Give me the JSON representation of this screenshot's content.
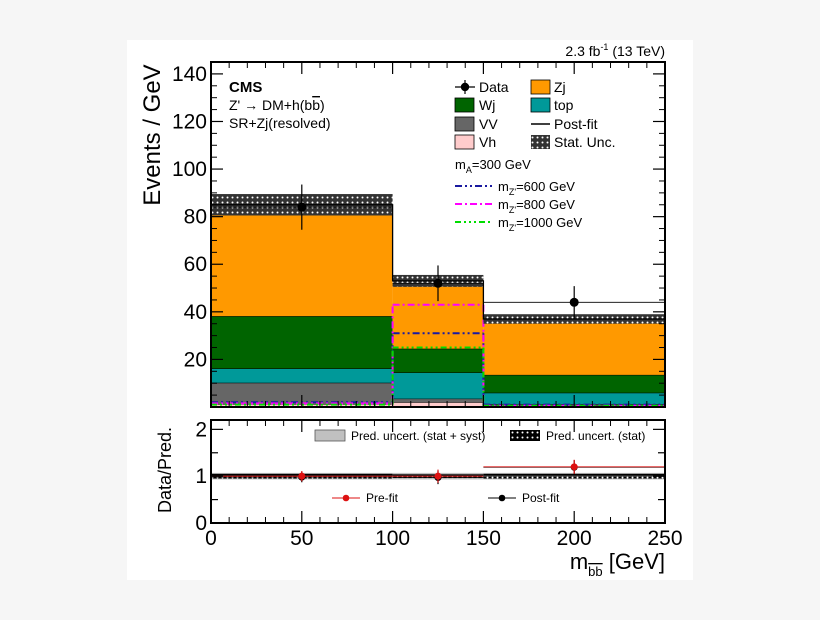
{
  "chart_data": {
    "type": "bar",
    "header": {
      "lumi_base": "2.3 fb",
      "lumi_sup": "-1",
      "lumi_rest": " (13 TeV)"
    },
    "annotations": {
      "experiment": "CMS",
      "process_pre": "Z' → DM+h(b",
      "process_bbar": "b",
      "process_post": ")",
      "region": "SR+Zj(resolved)"
    },
    "bins": [
      [
        0,
        100
      ],
      [
        100,
        150
      ],
      [
        150,
        250
      ]
    ],
    "stack_order": [
      "Vh",
      "VV",
      "top",
      "Wj",
      "Zj"
    ],
    "stack": {
      "Vh": [
        1.2,
        2.0,
        0.5
      ],
      "VV": [
        9.0,
        1.5,
        0.7
      ],
      "top": [
        6.0,
        11.0,
        4.8
      ],
      "Wj": [
        22.0,
        10.0,
        7.5
      ],
      "Zj": [
        46.8,
        28.5,
        23.5
      ]
    },
    "postfit_total": [
      85,
      53,
      37
    ],
    "stat_unc": [
      4.5,
      2.5,
      2.0
    ],
    "data": {
      "x": [
        50,
        125,
        200
      ],
      "y": [
        84,
        52,
        44
      ],
      "err": [
        9.5,
        7.5,
        6.8
      ]
    },
    "signals": [
      {
        "label_pre": "m",
        "label_sub": "Z'",
        "label_post": "=600 GeV",
        "color": "#1a1aa0",
        "dash": "7 3 2 3 2 3",
        "values": [
          2.0,
          31,
          1.0
        ]
      },
      {
        "label_pre": "m",
        "label_sub": "Z'",
        "label_post": "=800 GeV",
        "color": "#ff00ff",
        "dash": "7 3 2 3",
        "values": [
          1.5,
          43,
          0.5
        ]
      },
      {
        "label_pre": "m",
        "label_sub": "Z'",
        "label_post": "=1000 GeV",
        "color": "#00dd00",
        "dash": "6 3 2 3 2 3 2 3",
        "values": [
          1.0,
          25,
          0.5
        ]
      }
    ],
    "colors": {
      "Zj": "#ff9900",
      "Wj": "#006400",
      "top": "#009999",
      "VV": "#666666",
      "Vh": "#ffcccc",
      "stat": "#333333",
      "syst": "#c0c0c0",
      "prefit": "#dd1111"
    },
    "legend": {
      "data": "Data",
      "zj": "Zj",
      "wj": "Wj",
      "top": "top",
      "vv": "VV",
      "postfit": "Post-fit",
      "vh": "Vh",
      "stat": "Stat. Unc.",
      "ma_pre": "m",
      "ma_sub": "A",
      "ma_post": "=300 GeV"
    },
    "ylabel": "Events / GeV",
    "ylim": [
      0,
      145
    ],
    "yticks": [
      20,
      40,
      60,
      80,
      100,
      120,
      140
    ],
    "ratio": {
      "ylabel": "Data/Pred.",
      "ylim": [
        0,
        2.2
      ],
      "yticks": [
        0,
        0.5,
        1,
        1.5,
        2
      ],
      "ytick_labels": [
        "0",
        "",
        "1",
        "",
        "2"
      ],
      "prefit": {
        "x": [
          50,
          125,
          200
        ],
        "y": [
          1.0,
          1.0,
          1.2
        ],
        "err": [
          0.11,
          0.14,
          0.15
        ]
      },
      "postfit": {
        "x": [
          50,
          125,
          200
        ],
        "y": [
          0.98,
          0.97,
          1.19
        ],
        "err": [
          0.11,
          0.14,
          0.15
        ]
      },
      "syst_band": [
        0.07,
        0.07,
        0.07
      ],
      "stat_band": [
        0.05,
        0.04,
        0.05
      ],
      "legend": {
        "syst": "Pred. uncert. (stat + syst)",
        "stat": "Pred. uncert. (stat)",
        "prefit": "Pre-fit",
        "postfit": "Post-fit"
      }
    },
    "xlabel_pre": "m",
    "xlabel_sub": "bb",
    "xlabel_post": " [GeV]",
    "xlim": [
      0,
      250
    ],
    "xticks": [
      0,
      50,
      100,
      150,
      200,
      250
    ]
  }
}
